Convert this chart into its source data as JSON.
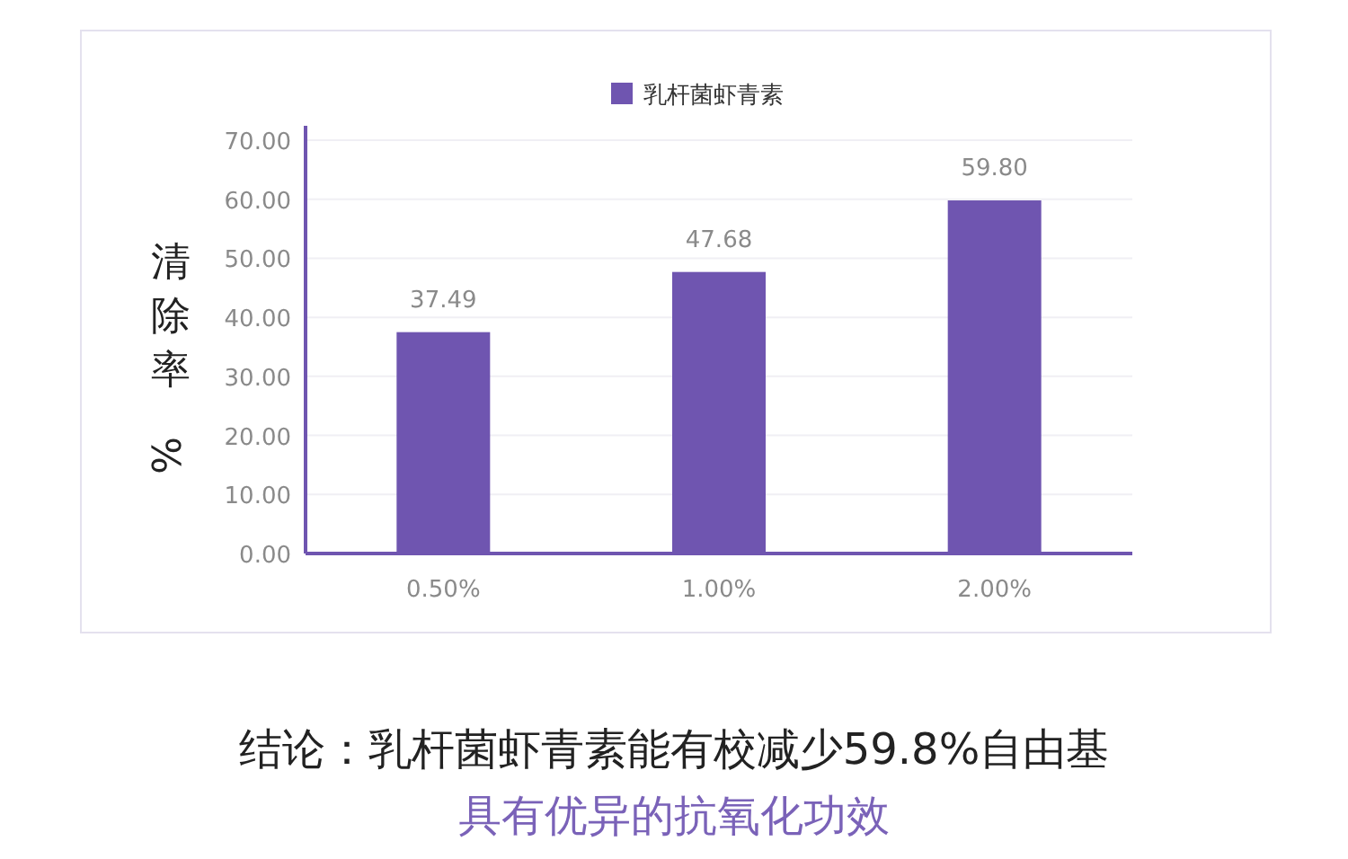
{
  "chart_data": {
    "type": "bar",
    "ylabel": "清除率%",
    "categories": [
      "0.50%",
      "1.00%",
      "2.00%"
    ],
    "series": [
      {
        "name": "乳杆菌虾青素",
        "color": "#6f55b0",
        "values": [
          37.49,
          47.68,
          59.8
        ],
        "value_labels": [
          "37.49",
          "47.68",
          "59.80"
        ]
      }
    ],
    "ylim": [
      0,
      70
    ],
    "yticks": [
      {
        "value": 0,
        "label": "0.00"
      },
      {
        "value": 10,
        "label": "10.00"
      },
      {
        "value": 20,
        "label": "20.00"
      },
      {
        "value": 30,
        "label": "30.00"
      },
      {
        "value": 40,
        "label": "40.00"
      },
      {
        "value": 50,
        "label": "50.00"
      },
      {
        "value": 60,
        "label": "60.00"
      },
      {
        "value": 70,
        "label": "70.00"
      }
    ],
    "grid": "y",
    "legend": "top",
    "annotations": [
      "结论：乳杆菌虾青素能有校减少59.8%自由基",
      "具有优异的抗氧化功效"
    ]
  }
}
